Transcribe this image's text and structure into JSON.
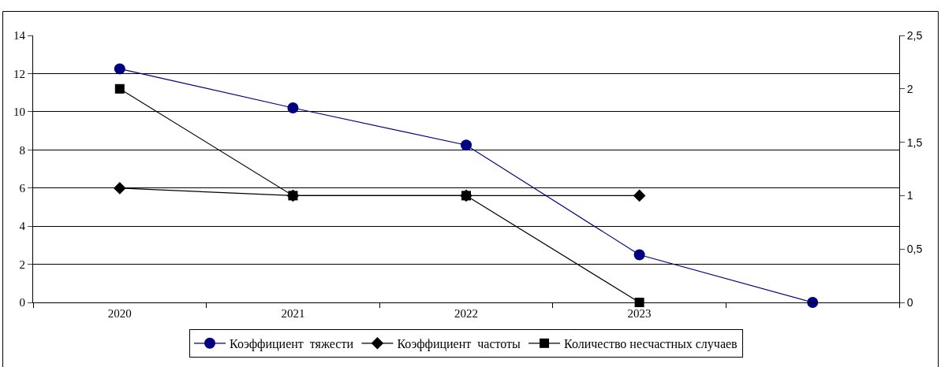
{
  "chart_data": {
    "type": "line",
    "categories": [
      "2020",
      "2021",
      "2022",
      "2023",
      null
    ],
    "series": [
      {
        "name": "Коэффициент  тяжести",
        "color": "#000080",
        "marker": "circle",
        "values": [
          12.25,
          10.2,
          8.25,
          2.5,
          0
        ]
      },
      {
        "name": "Коэффициент  частоты",
        "color": "#000000",
        "marker": "diamond",
        "axis": "y2",
        "values": [
          1.07,
          1,
          1,
          1,
          null
        ]
      },
      {
        "name": "Количество несчастных случаев",
        "color": "#000000",
        "marker": "square",
        "axis": "y2",
        "values": [
          2,
          1,
          1,
          0,
          null
        ]
      }
    ],
    "ylim": [
      0,
      14
    ],
    "yticks": [
      0,
      2,
      4,
      6,
      8,
      10,
      12,
      14
    ],
    "y2lim": [
      0,
      2.5
    ],
    "y2ticks": [
      0,
      {
        "value": 0.5,
        "label": "0,5"
      },
      1,
      {
        "value": 1.5,
        "label": "1,5"
      },
      2,
      {
        "value": 2.5,
        "label": "2,5"
      }
    ],
    "grid": "y",
    "legend": "bottom"
  }
}
